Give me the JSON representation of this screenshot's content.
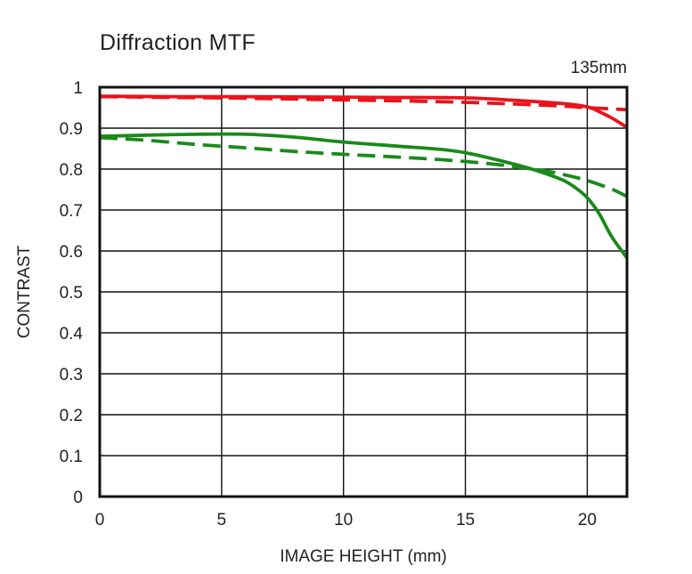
{
  "chart_data": {
    "type": "line",
    "title": "Diffraction MTF",
    "subtitle": "135mm",
    "xlabel": "IMAGE HEIGHT (mm)",
    "ylabel": "CONTRAST",
    "xlim": [
      0,
      21.63
    ],
    "ylim": [
      0,
      1
    ],
    "xticks": [
      0,
      5,
      10,
      15,
      20
    ],
    "yticks": [
      0,
      0.1,
      0.2,
      0.3,
      0.4,
      0.5,
      0.6,
      0.7,
      0.8,
      0.9,
      1
    ],
    "grid": true,
    "legend": "none",
    "series": [
      {
        "color": "#e8141c",
        "style": "solid",
        "x": [
          0,
          3,
          6,
          9,
          12,
          15,
          17,
          19,
          20,
          20.5,
          21,
          21.63
        ],
        "y": [
          0.978,
          0.977,
          0.977,
          0.976,
          0.975,
          0.974,
          0.968,
          0.96,
          0.952,
          0.94,
          0.925,
          0.902
        ]
      },
      {
        "color": "#e8141c",
        "style": "dashed",
        "x": [
          0,
          3,
          6,
          9,
          12,
          15,
          17,
          19,
          20,
          21,
          21.63
        ],
        "y": [
          0.977,
          0.975,
          0.973,
          0.97,
          0.967,
          0.963,
          0.959,
          0.954,
          0.95,
          0.947,
          0.945
        ]
      },
      {
        "color": "#1a8a1a",
        "style": "solid",
        "x": [
          0,
          2,
          4,
          6,
          8,
          10,
          12,
          14,
          15,
          16,
          17,
          18,
          19,
          19.5,
          20,
          20.5,
          21,
          21.63
        ],
        "y": [
          0.88,
          0.883,
          0.885,
          0.885,
          0.878,
          0.866,
          0.857,
          0.848,
          0.84,
          0.827,
          0.812,
          0.795,
          0.773,
          0.755,
          0.73,
          0.69,
          0.635,
          0.583
        ]
      },
      {
        "color": "#1a8a1a",
        "style": "dashed",
        "x": [
          0,
          2,
          4,
          6,
          8,
          10,
          12,
          14,
          16,
          18,
          19,
          20,
          21,
          21.63
        ],
        "y": [
          0.877,
          0.87,
          0.86,
          0.852,
          0.843,
          0.836,
          0.83,
          0.823,
          0.813,
          0.798,
          0.787,
          0.772,
          0.751,
          0.733
        ]
      }
    ]
  }
}
